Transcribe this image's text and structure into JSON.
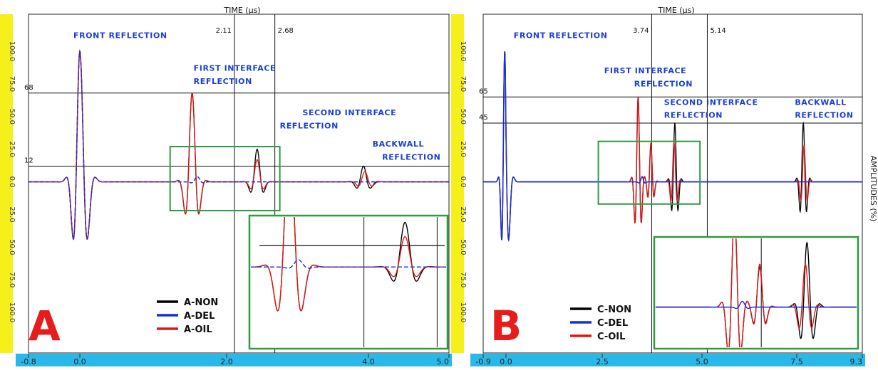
{
  "chart_data": [
    {
      "type": "line",
      "panel_label": "A",
      "xlabel": "TIME (µs)",
      "ylabel": "AMPLITUDES (%)",
      "xlim": [
        -0.8,
        5.0
      ],
      "ylim": [
        -130,
        125
      ],
      "x_ticks": [
        "-0.8",
        "0.0",
        "2.0",
        "4.0",
        "5.0"
      ],
      "x_tick_values": [
        -0.8,
        0.0,
        2.0,
        4.0,
        5.0
      ],
      "y_ticks": [
        "100.0",
        "75.0",
        "50.0",
        "25.0",
        "0.0",
        "25.0",
        "50.0",
        "75.0",
        "100.0"
      ],
      "y_tick_values": [
        100,
        75,
        50,
        25,
        0,
        -25,
        -50,
        -75,
        -100
      ],
      "cursor_x": [
        {
          "label": "2.11",
          "value": 2.11
        },
        {
          "label": "2.68",
          "value": 2.68
        }
      ],
      "cursor_y": [
        {
          "label": "68",
          "value": 68
        },
        {
          "label": "12",
          "value": 12
        }
      ],
      "annotations": [
        {
          "text": "FRONT REFLECTION",
          "x": -0.1,
          "y": 110
        },
        {
          "text": "FIRST INTERFACE",
          "x": 1.55,
          "y": 85
        },
        {
          "text": "REFLECTION",
          "x": 1.55,
          "y": 75
        },
        {
          "text": "SECOND INTERFACE",
          "x": 3.07,
          "y": 51
        },
        {
          "text": "REFLECTION",
          "x": 2.75,
          "y": 41
        },
        {
          "text": "BACKWALL",
          "x": 4.05,
          "y": 27
        },
        {
          "text": "REFLECTION",
          "x": 4.17,
          "y": 17
        }
      ],
      "legend": [
        "A-NON",
        "A-DEL",
        "A-OIL"
      ],
      "inset_window": {
        "x": [
          1.23,
          2.75
        ],
        "y": [
          -22,
          27
        ]
      },
      "inset_ylim": [
        -45,
        28
      ],
      "inset_cursor_y": 12,
      "series": [
        {
          "name": "A-NON",
          "color": "#000000",
          "pulses": [
            {
              "t": 0.0,
              "a": 100,
              "f": 4.2,
              "s": 0.085
            },
            {
              "t": 1.53,
              "a": 68,
              "f": 4.5,
              "s": 0.07
            },
            {
              "t": 2.43,
              "a": 25,
              "f": 4.5,
              "s": 0.065
            },
            {
              "t": 3.93,
              "a": 12,
              "f": 4.5,
              "s": 0.075
            }
          ]
        },
        {
          "name": "A-DEL",
          "color": "#1030e0",
          "dash": true,
          "pulses": [
            {
              "t": 0.0,
              "a": 100,
              "f": 4.2,
              "s": 0.085
            },
            {
              "t": 1.6,
              "a": 4,
              "f": 4.5,
              "s": 0.05
            }
          ]
        },
        {
          "name": "A-OIL",
          "color": "#e01818",
          "pulses": [
            {
              "t": 0.0,
              "a": 100,
              "f": 4.2,
              "s": 0.085
            },
            {
              "t": 1.53,
              "a": 68,
              "f": 4.5,
              "s": 0.07
            },
            {
              "t": 2.43,
              "a": 17,
              "f": 4.5,
              "s": 0.065
            },
            {
              "t": 3.95,
              "a": 8,
              "f": 4.5,
              "s": 0.075
            }
          ]
        }
      ]
    },
    {
      "type": "line",
      "panel_label": "B",
      "xlabel": "TIME (µs)",
      "ylabel": "AMPLITUDES (%)",
      "xlim": [
        -0.9,
        9.3
      ],
      "ylim": [
        -130,
        125
      ],
      "x_ticks": [
        "-0.9",
        "0.0",
        "2.5",
        "5.0",
        "7.5",
        "9.3"
      ],
      "x_tick_values": [
        -0.9,
        0.0,
        2.5,
        5.0,
        7.5,
        9.3
      ],
      "y_ticks": [
        "100.0",
        "75.0",
        "50.0",
        "25.0",
        "0.0",
        "25.0",
        "50.0",
        "75.0",
        "100.0"
      ],
      "y_tick_values": [
        100,
        75,
        50,
        25,
        0,
        -25,
        -50,
        -75,
        -100
      ],
      "cursor_x": [
        {
          "label": "3.74",
          "value": 3.74
        },
        {
          "label": "5.14",
          "value": 5.14
        }
      ],
      "cursor_y": [
        {
          "label": "65",
          "value": 65
        },
        {
          "label": "45",
          "value": 45
        }
      ],
      "annotations": [
        {
          "text": "FRONT REFLECTION",
          "x": 0.2,
          "y": 110
        },
        {
          "text": "FIRST INTERFACE",
          "x": 2.55,
          "y": 83
        },
        {
          "text": "REFLECTION",
          "x": 3.3,
          "y": 73
        },
        {
          "text": "SECOND INTERFACE",
          "x": 4.05,
          "y": 59
        },
        {
          "text": "REFLECTION",
          "x": 4.05,
          "y": 49
        },
        {
          "text": "BACKWALL",
          "x": 7.45,
          "y": 59
        },
        {
          "text": "REFLECTION",
          "x": 7.45,
          "y": 49
        }
      ],
      "legend": [
        "C-NON",
        "C-DEL",
        "C-OIL"
      ],
      "inset_window": {
        "x": [
          2.4,
          4.95
        ],
        "y": [
          -17,
          31
        ]
      },
      "inset_ylim": [
        -28,
        48
      ],
      "inset_cursor_y": null,
      "series": [
        {
          "name": "C-NON",
          "color": "#000000",
          "pulses": [
            {
              "t": -0.05,
              "a": 100,
              "f": 3.6,
              "s": 0.1
            },
            {
              "t": 3.4,
              "a": 65,
              "f": 5.5,
              "s": 0.07
            },
            {
              "t": 3.72,
              "a": 28,
              "f": 5.5,
              "s": 0.06
            },
            {
              "t": 4.32,
              "a": 45,
              "f": 5.5,
              "s": 0.07
            },
            {
              "t": 7.68,
              "a": 45,
              "f": 5.0,
              "s": 0.08
            }
          ]
        },
        {
          "name": "C-DEL",
          "color": "#1030e0",
          "pulses": [
            {
              "t": -0.05,
              "a": 100,
              "f": 3.6,
              "s": 0.1
            },
            {
              "t": 3.5,
              "a": 4,
              "f": 5.0,
              "s": 0.05
            }
          ]
        },
        {
          "name": "C-OIL",
          "color": "#e01818",
          "pulses": [
            {
              "t": -0.05,
              "a": 100,
              "f": 3.6,
              "s": 0.1
            },
            {
              "t": 3.4,
              "a": 65,
              "f": 5.5,
              "s": 0.07
            },
            {
              "t": 3.72,
              "a": 30,
              "f": 5.5,
              "s": 0.06
            },
            {
              "t": 4.3,
              "a": 30,
              "f": 5.5,
              "s": 0.07
            },
            {
              "t": 7.7,
              "a": 28,
              "f": 5.0,
              "s": 0.08
            }
          ]
        }
      ]
    }
  ],
  "colors": {
    "axis_band_y": "#f5ef1a",
    "axis_band_x": "#2ab8e8",
    "annotation": "#1a3fd8",
    "inset_border": "#2f9a3e",
    "panel_label": "#e51d1d"
  }
}
